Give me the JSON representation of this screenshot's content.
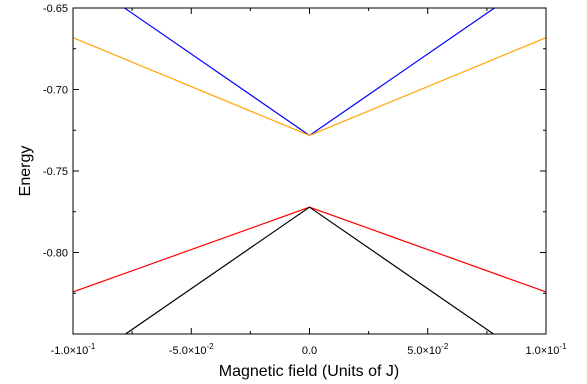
{
  "chart_data": {
    "type": "line",
    "title": "",
    "xlabel": "Magnetic field (Units of J)",
    "ylabel": "Energy",
    "xlim": [
      -0.1,
      0.1
    ],
    "ylim": [
      -0.85,
      -0.65
    ],
    "grid": false,
    "legend": "none",
    "x_ticks": [
      {
        "value": -0.1,
        "mantissa": "-1.0×10",
        "exponent": "-1"
      },
      {
        "value": -0.05,
        "mantissa": "-5.0×10",
        "exponent": "-2"
      },
      {
        "value": 0.0,
        "mantissa": "0.0",
        "exponent": ""
      },
      {
        "value": 0.05,
        "mantissa": "5.0×10",
        "exponent": "-2"
      },
      {
        "value": 0.1,
        "mantissa": "1.0×10",
        "exponent": "-1"
      }
    ],
    "y_ticks": [
      {
        "value": -0.65,
        "label": "-0.65"
      },
      {
        "value": -0.7,
        "label": "-0.70"
      },
      {
        "value": -0.75,
        "label": "-0.75"
      },
      {
        "value": -0.8,
        "label": "-0.80"
      }
    ],
    "series": [
      {
        "color": "#0000ff",
        "x": [
          -0.1,
          0.0,
          0.1
        ],
        "y": [
          -0.6282,
          -0.7282,
          -0.6282
        ]
      },
      {
        "color": "#ffa500",
        "x": [
          -0.1,
          0.0,
          0.1
        ],
        "y": [
          -0.6682,
          -0.7282,
          -0.6682
        ]
      },
      {
        "color": "#ff0000",
        "x": [
          -0.1,
          0.0,
          0.1
        ],
        "y": [
          -0.8242,
          -0.7722,
          -0.8242
        ]
      },
      {
        "color": "#000000",
        "x": [
          -0.1,
          0.0,
          0.1
        ],
        "y": [
          -0.8722,
          -0.7722,
          -0.8722
        ]
      }
    ]
  }
}
